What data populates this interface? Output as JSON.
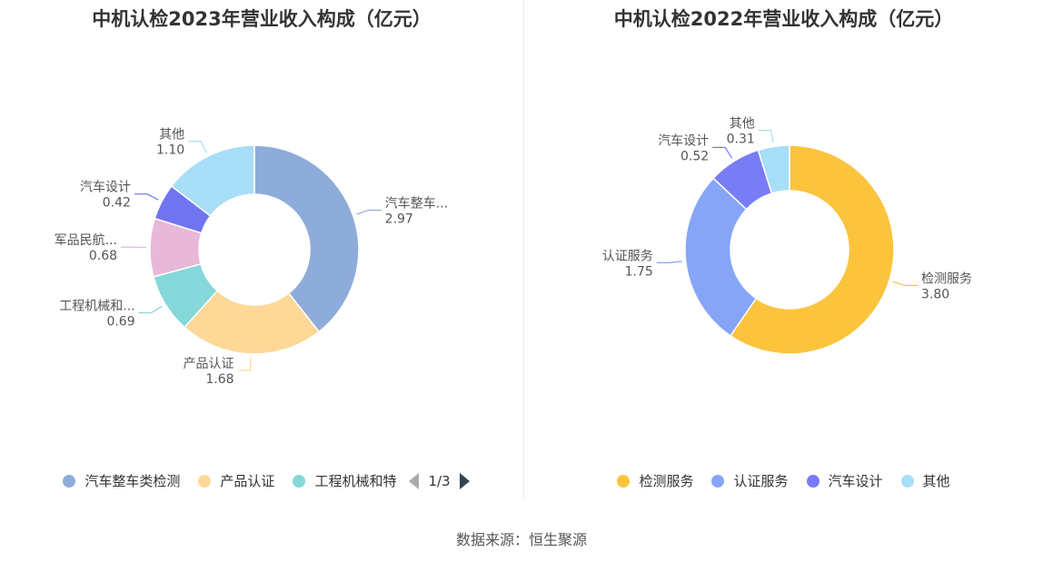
{
  "source": "数据来源：恒生聚源",
  "chart_data": [
    {
      "type": "pie",
      "title": "中机认检2023年营业收入构成（亿元）",
      "slices": [
        {
          "name": "汽车整车类检测",
          "label": "汽车整车...",
          "value": 2.97,
          "value_label": "2.97",
          "color": "#8eacd9"
        },
        {
          "name": "产品认证",
          "label": "产品认证",
          "value": 1.68,
          "value_label": "1.68",
          "color": "#fdd897"
        },
        {
          "name": "工程机械和特",
          "label": "工程机械和...",
          "value": 0.69,
          "value_label": "0.69",
          "color": "#85d7da"
        },
        {
          "name": "军品民航",
          "label": "军品民航...",
          "value": 0.68,
          "value_label": "0.68",
          "color": "#e8b8d8"
        },
        {
          "name": "汽车设计",
          "label": "汽车设计",
          "value": 0.42,
          "value_label": "0.42",
          "color": "#7074f0"
        },
        {
          "name": "其他",
          "label": "其他",
          "value": 1.1,
          "value_label": "1.10",
          "color": "#a8def7"
        }
      ],
      "legend": {
        "items": [
          "汽车整车类检测",
          "产品认证",
          "工程机械和特"
        ],
        "pager": "1/3"
      }
    },
    {
      "type": "pie",
      "title": "中机认检2022年营业收入构成（亿元）",
      "slices": [
        {
          "name": "检测服务",
          "label": "检测服务",
          "value": 3.8,
          "value_label": "3.80",
          "color": "#fcc43d"
        },
        {
          "name": "认证服务",
          "label": "认证服务",
          "value": 1.75,
          "value_label": "1.75",
          "color": "#86a5f7"
        },
        {
          "name": "汽车设计",
          "label": "汽车设计",
          "value": 0.52,
          "value_label": "0.52",
          "color": "#787cf5"
        },
        {
          "name": "其他",
          "label": "其他",
          "value": 0.31,
          "value_label": "0.31",
          "color": "#a8def7"
        }
      ],
      "legend": {
        "items": [
          "检测服务",
          "认证服务",
          "汽车设计",
          "其他"
        ]
      }
    }
  ]
}
